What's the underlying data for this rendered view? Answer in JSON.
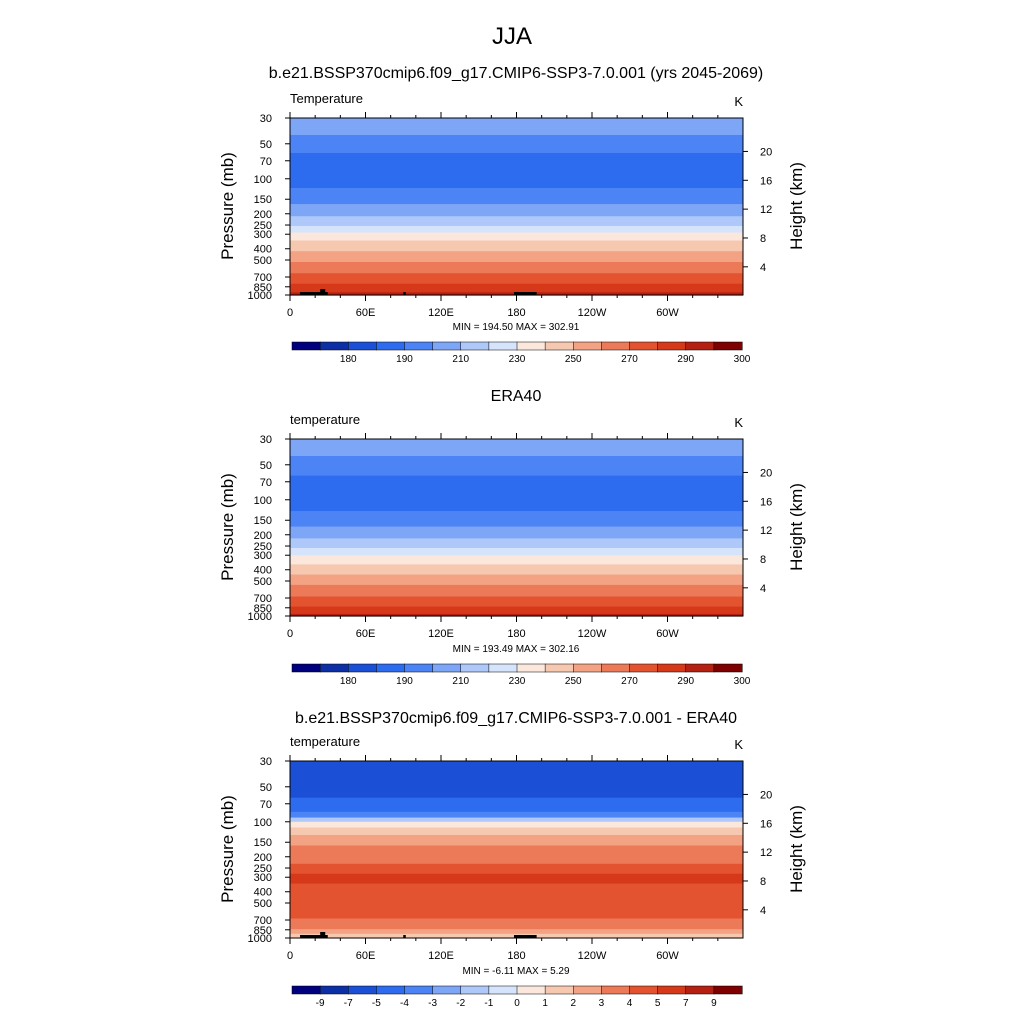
{
  "main_title": "JJA",
  "x_ticks": [
    "0",
    "60E",
    "120E",
    "180",
    "120W",
    "60W"
  ],
  "y_ticks": [
    "30",
    "50",
    "70",
    "100",
    "150",
    "200",
    "250",
    "300",
    "400",
    "500",
    "700",
    "850",
    "1000"
  ],
  "y_ticks_values": [
    30,
    50,
    70,
    100,
    150,
    200,
    250,
    300,
    400,
    500,
    700,
    850,
    1000
  ],
  "right_ticks": [
    "20",
    "16",
    "12",
    "8",
    "4"
  ],
  "right_ticks_values": [
    20,
    16,
    12,
    8,
    4
  ],
  "chart_data": [
    {
      "type": "heatmap",
      "title": "b.e21.BSSP370cmip6.f09_g17.CMIP6-SSP3-7.0.001 (yrs 2045-2069)",
      "left_label": "Temperature",
      "units": "K",
      "ylabel": "Pressure (mb)",
      "ylabel_right": "Height (km)",
      "xlim": [
        0,
        360
      ],
      "ylim": [
        1000,
        30
      ],
      "y_scale": "log",
      "stats": "MIN = 194.50  MAX = 302.91",
      "min": 194.5,
      "max": 302.91,
      "colorbar_labels": [
        "180",
        "190",
        "210",
        "230",
        "250",
        "270",
        "290",
        "300"
      ],
      "colorbar_colors": [
        "#00007f",
        "#0d2fa6",
        "#1a4fd6",
        "#2d6bef",
        "#4d84f5",
        "#7ea6f7",
        "#aec8f9",
        "#d6e4fb",
        "#fbe7db",
        "#f7c8b0",
        "#f3a283",
        "#ec7a58",
        "#e4532f",
        "#d6381a",
        "#b42012",
        "#7f0000"
      ],
      "profile_bands": [
        {
          "p": 30,
          "c": 5
        },
        {
          "p": 42,
          "c": 4
        },
        {
          "p": 60,
          "c": 3
        },
        {
          "p": 120,
          "c": 4
        },
        {
          "p": 165,
          "c": 5
        },
        {
          "p": 210,
          "c": 6
        },
        {
          "p": 255,
          "c": 7
        },
        {
          "p": 290,
          "c": 8
        },
        {
          "p": 340,
          "c": 9
        },
        {
          "p": 420,
          "c": 10
        },
        {
          "p": 520,
          "c": 11
        },
        {
          "p": 650,
          "c": 12
        },
        {
          "p": 800,
          "c": 13
        },
        {
          "p": 950,
          "c": 14
        }
      ],
      "has_topography": true
    },
    {
      "type": "heatmap",
      "title": "ERA40",
      "left_label": "temperature",
      "units": "K",
      "ylabel": "Pressure (mb)",
      "ylabel_right": "Height (km)",
      "xlim": [
        0,
        360
      ],
      "ylim": [
        1000,
        30
      ],
      "y_scale": "log",
      "stats": "MIN = 193.49  MAX = 302.16",
      "min": 193.49,
      "max": 302.16,
      "colorbar_labels": [
        "180",
        "190",
        "210",
        "230",
        "250",
        "270",
        "290",
        "300"
      ],
      "colorbar_colors": [
        "#00007f",
        "#0d2fa6",
        "#1a4fd6",
        "#2d6bef",
        "#4d84f5",
        "#7ea6f7",
        "#aec8f9",
        "#d6e4fb",
        "#fbe7db",
        "#f7c8b0",
        "#f3a283",
        "#ec7a58",
        "#e4532f",
        "#d6381a",
        "#b42012",
        "#7f0000"
      ],
      "profile_bands": [
        {
          "p": 30,
          "c": 5
        },
        {
          "p": 42,
          "c": 4
        },
        {
          "p": 62,
          "c": 3
        },
        {
          "p": 125,
          "c": 4
        },
        {
          "p": 170,
          "c": 5
        },
        {
          "p": 215,
          "c": 6
        },
        {
          "p": 260,
          "c": 7
        },
        {
          "p": 300,
          "c": 8
        },
        {
          "p": 360,
          "c": 9
        },
        {
          "p": 440,
          "c": 10
        },
        {
          "p": 540,
          "c": 11
        },
        {
          "p": 680,
          "c": 12
        },
        {
          "p": 830,
          "c": 13
        },
        {
          "p": 960,
          "c": 14
        }
      ],
      "has_topography": false
    },
    {
      "type": "heatmap",
      "title": "b.e21.BSSP370cmip6.f09_g17.CMIP6-SSP3-7.0.001 - ERA40",
      "left_label": "temperature",
      "units": "K",
      "ylabel": "Pressure (mb)",
      "ylabel_right": "Height (km)",
      "xlim": [
        0,
        360
      ],
      "ylim": [
        1000,
        30
      ],
      "y_scale": "log",
      "stats": "MIN = -6.11  MAX =  5.29",
      "min": -6.11,
      "max": 5.29,
      "colorbar_labels": [
        "-9",
        "-7",
        "-5",
        "-4",
        "-3",
        "-2",
        "-1",
        "0",
        "1",
        "2",
        "3",
        "4",
        "5",
        "7",
        "9"
      ],
      "colorbar_colors": [
        "#00007f",
        "#0d2fa6",
        "#1a4fd6",
        "#2d6bef",
        "#4d84f5",
        "#7ea6f7",
        "#aec8f9",
        "#d6e4fb",
        "#fbe7db",
        "#f7c8b0",
        "#f3a283",
        "#ec7a58",
        "#e4532f",
        "#d6381a",
        "#b42012",
        "#7f0000"
      ],
      "profile_bands": [
        {
          "p": 30,
          "c": 2
        },
        {
          "p": 62,
          "c": 3
        },
        {
          "p": 82,
          "c": 4
        },
        {
          "p": 92,
          "c": 6
        },
        {
          "p": 100,
          "c": 8
        },
        {
          "p": 112,
          "c": 9
        },
        {
          "p": 130,
          "c": 10
        },
        {
          "p": 160,
          "c": 11
        },
        {
          "p": 230,
          "c": 12
        },
        {
          "p": 280,
          "c": 13
        },
        {
          "p": 340,
          "c": 12
        },
        {
          "p": 680,
          "c": 11
        },
        {
          "p": 840,
          "c": 10
        },
        {
          "p": 920,
          "c": 9
        }
      ],
      "has_topography": true
    }
  ]
}
